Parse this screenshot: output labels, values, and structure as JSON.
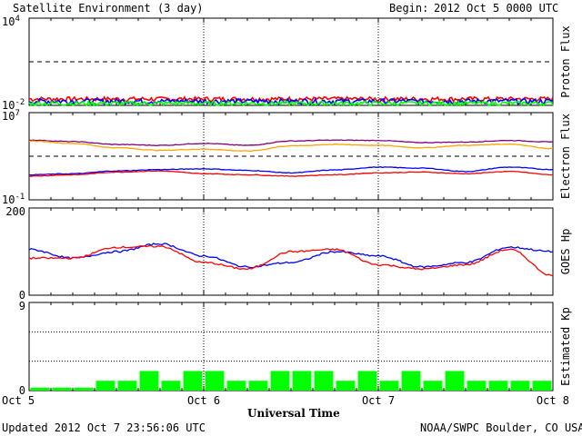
{
  "header": {
    "title": "Satellite Environment (3 day)",
    "begin_label": "Begin:",
    "begin_value": "2012 Oct 5 0000 UTC"
  },
  "footer": {
    "updated": "Updated 2012 Oct  7 23:56:06 UTC",
    "credit": "NOAA/SWPC Boulder, CO USA"
  },
  "colors": {
    "red": "#ff0000",
    "blue": "#0000ff",
    "green": "#00ff00",
    "orange": "#ffa500",
    "purple": "#800080"
  },
  "chart_data": [
    {
      "type": "line",
      "ylabel": "Proton Flux",
      "yscale": "log",
      "ylim": [
        0.01,
        10000
      ],
      "yticks": [
        {
          "base": "10",
          "exp": "4"
        },
        {
          "base": "10",
          "exp": "-2"
        }
      ],
      "threshold": 10,
      "x_range_days": [
        0,
        3
      ],
      "series": [
        {
          "color": "#ff0000",
          "level": 0.028,
          "noise": 0.01
        },
        {
          "color": "#0000ff",
          "level": 0.02,
          "noise": 0.008
        },
        {
          "color": "#00ff00",
          "level": 0.014,
          "noise": 0.005
        }
      ]
    },
    {
      "type": "line",
      "ylabel": "Electron Flux",
      "yscale": "log",
      "ylim": [
        0.1,
        10000000
      ],
      "yticks": [
        {
          "base": "10",
          "exp": "7"
        },
        {
          "base": "10",
          "exp": "-1"
        }
      ],
      "threshold": 1000,
      "x": [
        0,
        0.25,
        0.5,
        0.75,
        1.0,
        1.25,
        1.5,
        1.75,
        2.0,
        2.25,
        2.5,
        2.75,
        3.0
      ],
      "series": [
        {
          "color": "#800080",
          "values": [
            30000,
            22000,
            12000,
            10000,
            15000,
            10000,
            25000,
            30000,
            28000,
            18000,
            20000,
            28000,
            20000
          ]
        },
        {
          "color": "#ffa500",
          "values": [
            25000,
            15000,
            6000,
            3500,
            4500,
            3000,
            9000,
            12000,
            10000,
            6000,
            10000,
            13000,
            5000
          ]
        },
        {
          "color": "#0000ff",
          "values": [
            20,
            25,
            45,
            60,
            70,
            50,
            30,
            55,
            100,
            80,
            40,
            100,
            60
          ]
        },
        {
          "color": "#ff0000",
          "values": [
            15,
            20,
            35,
            45,
            25,
            20,
            15,
            20,
            30,
            35,
            25,
            40,
            20
          ]
        }
      ]
    },
    {
      "type": "line",
      "ylabel": "GOES Hp",
      "ylim": [
        0,
        200
      ],
      "yticks": [
        200,
        0
      ],
      "x": [
        0,
        0.25,
        0.5,
        0.75,
        1.0,
        1.25,
        1.5,
        1.75,
        2.0,
        2.25,
        2.5,
        2.75,
        3.0
      ],
      "series": [
        {
          "color": "#0000ff",
          "values": [
            105,
            85,
            100,
            118,
            90,
            65,
            75,
            100,
            90,
            65,
            75,
            110,
            100
          ]
        },
        {
          "color": "#ff0000",
          "values": [
            85,
            85,
            110,
            112,
            75,
            60,
            100,
            105,
            70,
            60,
            70,
            105,
            45
          ]
        }
      ]
    },
    {
      "type": "bar",
      "ylabel": "Estimated Kp",
      "ylim": [
        0,
        9
      ],
      "yticks": [
        9,
        0
      ],
      "gridlines": [
        3,
        6,
        9
      ],
      "bar_color": "#00ff00",
      "values": [
        0.3,
        0.3,
        0.3,
        1,
        1,
        2,
        1,
        2,
        2,
        1,
        1,
        2,
        2,
        2,
        1,
        2,
        1,
        2,
        1,
        2,
        1,
        1,
        1,
        1
      ]
    }
  ],
  "xaxis": {
    "label": "Universal Time",
    "ticks": [
      "Oct 5",
      "Oct 6",
      "Oct 7",
      "Oct 8"
    ]
  }
}
